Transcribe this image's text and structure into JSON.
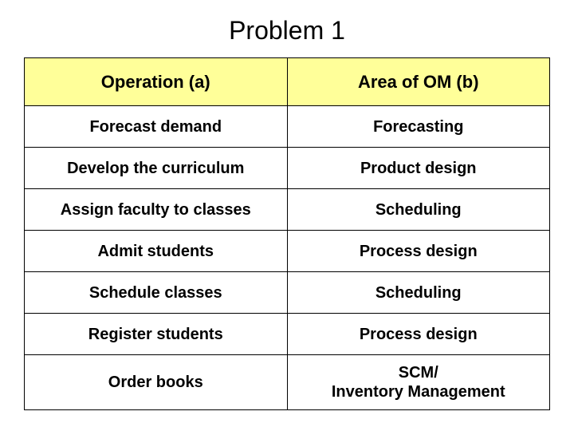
{
  "title": "Problem 1",
  "table": {
    "header_bg": "#ffff99",
    "border_color": "#000000",
    "columns": [
      "Operation (a)",
      "Area of OM (b)"
    ],
    "rows": [
      [
        "Forecast demand",
        "Forecasting"
      ],
      [
        "Develop the curriculum",
        "Product design"
      ],
      [
        "Assign faculty to classes",
        "Scheduling"
      ],
      [
        "Admit students",
        "Process design"
      ],
      [
        "Schedule classes",
        "Scheduling"
      ],
      [
        "Register students",
        "Process design"
      ],
      [
        "Order books",
        "SCM/\nInventory Management"
      ]
    ],
    "title_fontsize": 32,
    "header_fontsize": 22,
    "cell_fontsize": 20
  }
}
